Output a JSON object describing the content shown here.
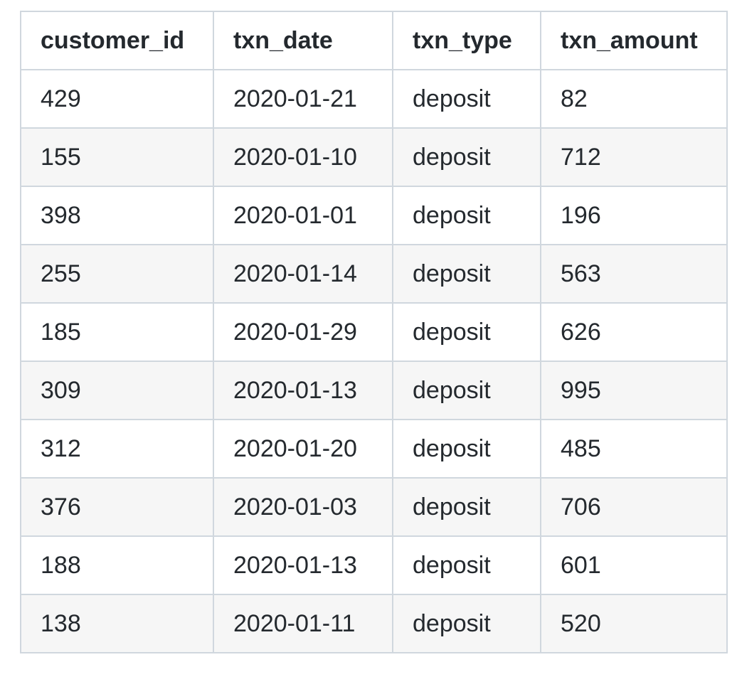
{
  "table": {
    "columns": [
      "customer_id",
      "txn_date",
      "txn_type",
      "txn_amount"
    ],
    "rows": [
      [
        "429",
        "2020-01-21",
        "deposit",
        "82"
      ],
      [
        "155",
        "2020-01-10",
        "deposit",
        "712"
      ],
      [
        "398",
        "2020-01-01",
        "deposit",
        "196"
      ],
      [
        "255",
        "2020-01-14",
        "deposit",
        "563"
      ],
      [
        "185",
        "2020-01-29",
        "deposit",
        "626"
      ],
      [
        "309",
        "2020-01-13",
        "deposit",
        "995"
      ],
      [
        "312",
        "2020-01-20",
        "deposit",
        "485"
      ],
      [
        "376",
        "2020-01-03",
        "deposit",
        "706"
      ],
      [
        "188",
        "2020-01-13",
        "deposit",
        "601"
      ],
      [
        "138",
        "2020-01-11",
        "deposit",
        "520"
      ]
    ]
  }
}
